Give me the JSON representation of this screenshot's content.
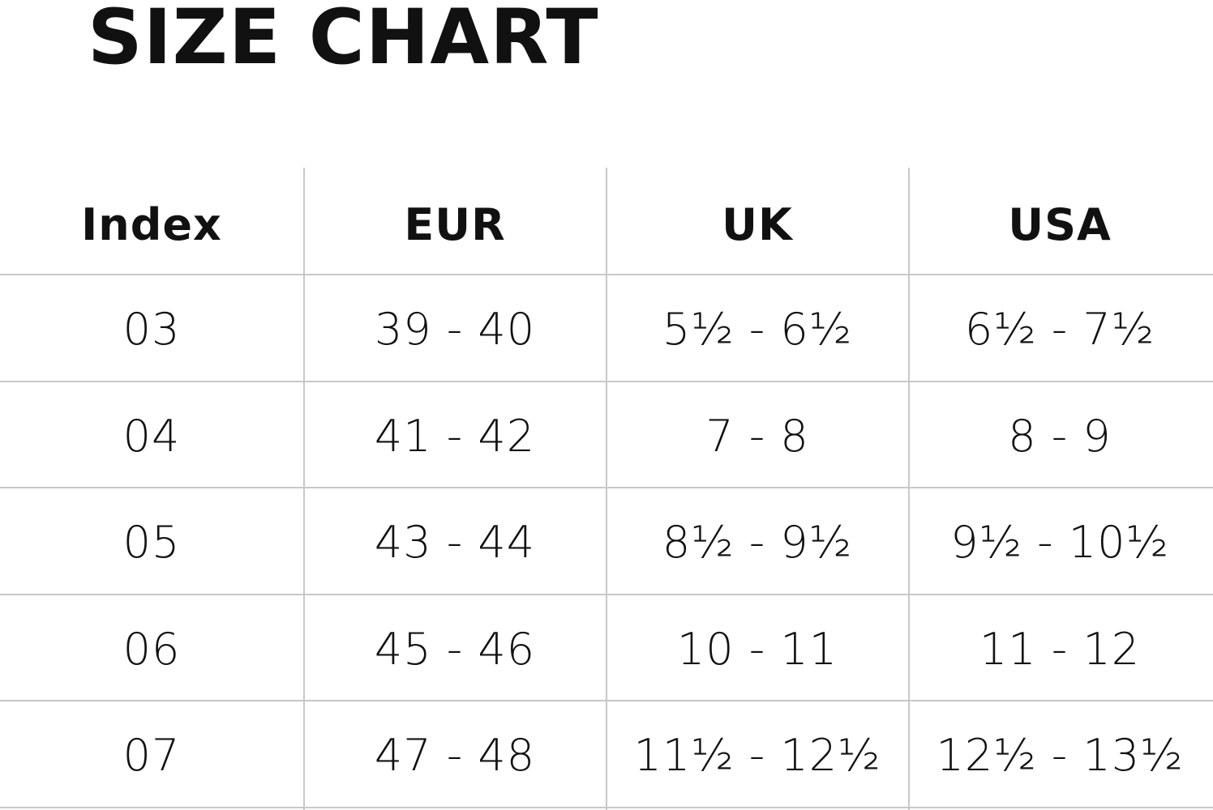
{
  "title": "SIZE CHART",
  "table": {
    "headers": [
      "Index",
      "EUR",
      "UK",
      "USA"
    ],
    "rows": [
      [
        "03",
        "39 - 40",
        "5½ - 6½",
        "6½ - 7½"
      ],
      [
        "04",
        "41 - 42",
        "7 - 8",
        "8 - 9"
      ],
      [
        "05",
        "43 - 44",
        "8½ - 9½",
        "9½ - 10½"
      ],
      [
        "06",
        "45 - 46",
        "10 - 11",
        "11 - 12"
      ],
      [
        "07",
        "47 - 48",
        "11½ - 12½",
        "12½ - 13½"
      ]
    ]
  }
}
